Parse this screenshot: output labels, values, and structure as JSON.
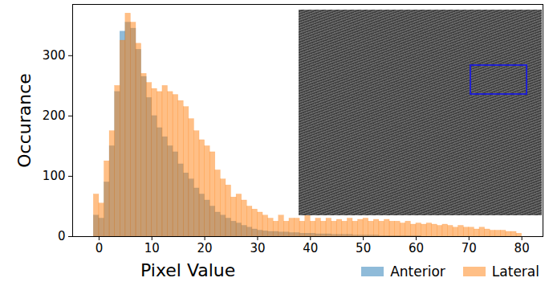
{
  "chart_data": {
    "type": "histogram",
    "x_label": "Pixel Value",
    "y_label": "Occurance",
    "bins": [
      -1,
      0,
      1,
      2,
      3,
      4,
      5,
      6,
      7,
      8,
      9,
      10,
      11,
      12,
      13,
      14,
      15,
      16,
      17,
      18,
      19,
      20,
      21,
      22,
      23,
      24,
      25,
      26,
      27,
      28,
      29,
      30,
      31,
      32,
      33,
      34,
      35,
      36,
      37,
      38,
      39,
      40,
      41,
      42,
      43,
      44,
      45,
      46,
      47,
      48,
      49,
      50,
      51,
      52,
      53,
      54,
      55,
      56,
      57,
      58,
      59,
      60,
      61,
      62,
      63,
      64,
      65,
      66,
      67,
      68,
      69,
      70,
      71,
      72,
      73,
      74,
      75,
      76,
      77,
      78,
      79,
      80
    ],
    "series": [
      {
        "name": "Anterior",
        "color": "#1f77b4",
        "values": [
          35,
          30,
          90,
          150,
          240,
          340,
          355,
          345,
          310,
          265,
          230,
          200,
          180,
          165,
          150,
          140,
          120,
          105,
          95,
          80,
          70,
          60,
          50,
          40,
          35,
          30,
          25,
          22,
          18,
          15,
          12,
          10,
          9,
          8,
          8,
          7,
          7,
          6,
          6,
          5,
          5,
          5,
          4,
          4,
          4,
          3,
          3,
          3,
          3,
          2,
          2,
          2,
          2,
          2,
          1,
          1,
          1,
          1,
          1,
          1,
          1,
          1,
          0,
          0,
          0,
          0,
          0,
          0,
          0,
          0,
          0,
          0,
          0,
          0,
          0,
          0,
          0,
          0,
          0,
          0,
          0
        ]
      },
      {
        "name": "Lateral",
        "color": "#ff7f0e",
        "values": [
          70,
          55,
          125,
          175,
          250,
          325,
          370,
          355,
          320,
          270,
          255,
          245,
          240,
          250,
          240,
          235,
          225,
          215,
          195,
          175,
          160,
          150,
          140,
          110,
          95,
          85,
          65,
          70,
          60,
          50,
          45,
          40,
          35,
          30,
          25,
          35,
          25,
          30,
          30,
          25,
          35,
          25,
          30,
          25,
          30,
          25,
          28,
          25,
          30,
          25,
          28,
          30,
          25,
          28,
          25,
          28,
          25,
          25,
          22,
          25,
          20,
          22,
          20,
          22,
          20,
          18,
          20,
          18,
          15,
          18,
          15,
          15,
          12,
          15,
          12,
          10,
          10,
          10,
          8,
          8,
          5
        ]
      }
    ],
    "xlim": [
      -5,
      84
    ],
    "xticks": [
      0,
      10,
      20,
      30,
      40,
      50,
      60,
      70,
      80
    ],
    "ylim": [
      0,
      385
    ],
    "yticks": [
      0,
      100,
      200,
      300
    ],
    "legend": "lower right"
  }
}
